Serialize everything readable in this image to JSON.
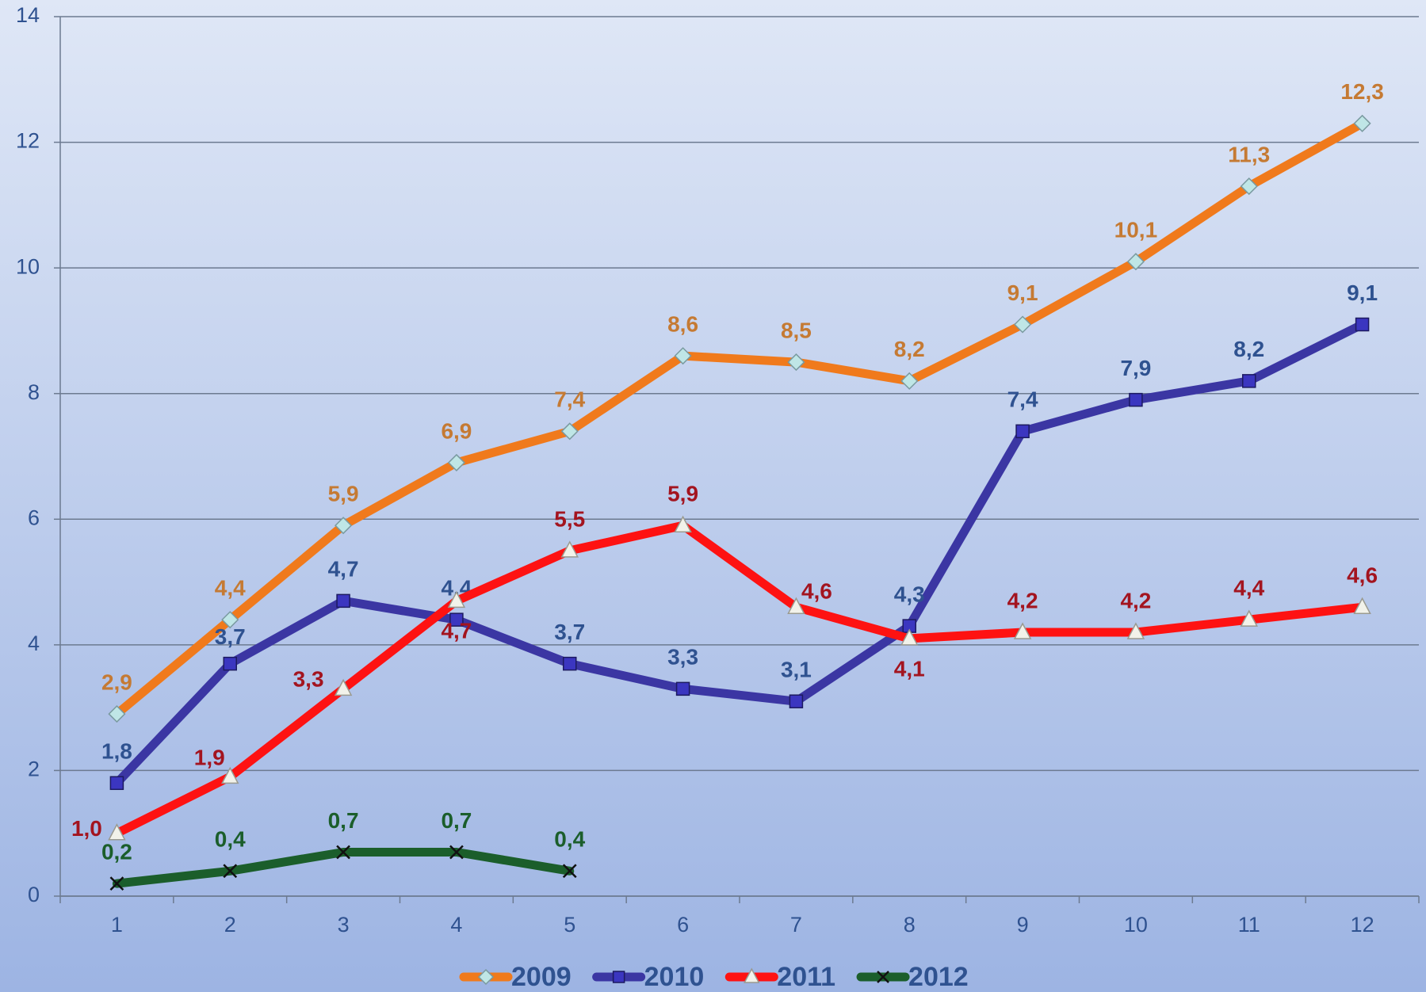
{
  "chart_data": {
    "type": "line",
    "categories": [
      1,
      2,
      3,
      4,
      5,
      6,
      7,
      8,
      9,
      10,
      11,
      12
    ],
    "ylim": [
      0,
      14
    ],
    "yticks": [
      0,
      2,
      4,
      6,
      8,
      10,
      12,
      14
    ],
    "grid": true,
    "legend": "bottom",
    "series": [
      {
        "name": "2009",
        "color": "#f07a1c",
        "label_color": "#c57a33",
        "marker": "diamond",
        "values": [
          2.9,
          4.4,
          5.9,
          6.9,
          7.4,
          8.6,
          8.5,
          8.2,
          9.1,
          10.1,
          11.3,
          12.3
        ],
        "value_labels": [
          "2,9",
          "4,4",
          "5,9",
          "6,9",
          "7,4",
          "8,6",
          "8,5",
          "8,2",
          "9,1",
          "10,1",
          "11,3",
          "12,3"
        ]
      },
      {
        "name": "2010",
        "color": "#3b36a3",
        "label_color": "#2f5290",
        "marker": "square",
        "values": [
          1.8,
          3.7,
          4.7,
          4.4,
          3.7,
          3.3,
          3.1,
          4.3,
          7.4,
          7.9,
          8.2,
          9.1
        ],
        "value_labels": [
          "1,8",
          "3,7",
          "4,7",
          "4,4",
          "3,7",
          "3,3",
          "3,1",
          "4,3",
          "7,4",
          "7,9",
          "8,2",
          "9,1"
        ]
      },
      {
        "name": "2011",
        "color": "#fe1212",
        "label_color": "#a3141f",
        "marker": "triangle",
        "values": [
          1.0,
          1.9,
          3.3,
          4.7,
          5.5,
          5.9,
          4.6,
          4.1,
          4.2,
          4.2,
          4.4,
          4.6
        ],
        "value_labels": [
          "1,0",
          "1,9",
          "3,3",
          "4,7",
          "5,5",
          "5,9",
          "4,6",
          "4,1",
          "4,2",
          "4,2",
          "4,4",
          "4,6"
        ]
      },
      {
        "name": "2012",
        "color": "#1b5e2b",
        "label_color": "#1b5e2b",
        "marker": "x",
        "values": [
          0.2,
          0.4,
          0.7,
          0.7,
          0.4,
          null,
          null,
          null,
          null,
          null,
          null,
          null
        ],
        "value_labels": [
          "0,2",
          "0,4",
          "0,7",
          "0,7",
          "0,4",
          null,
          null,
          null,
          null,
          null,
          null,
          null
        ]
      }
    ]
  }
}
